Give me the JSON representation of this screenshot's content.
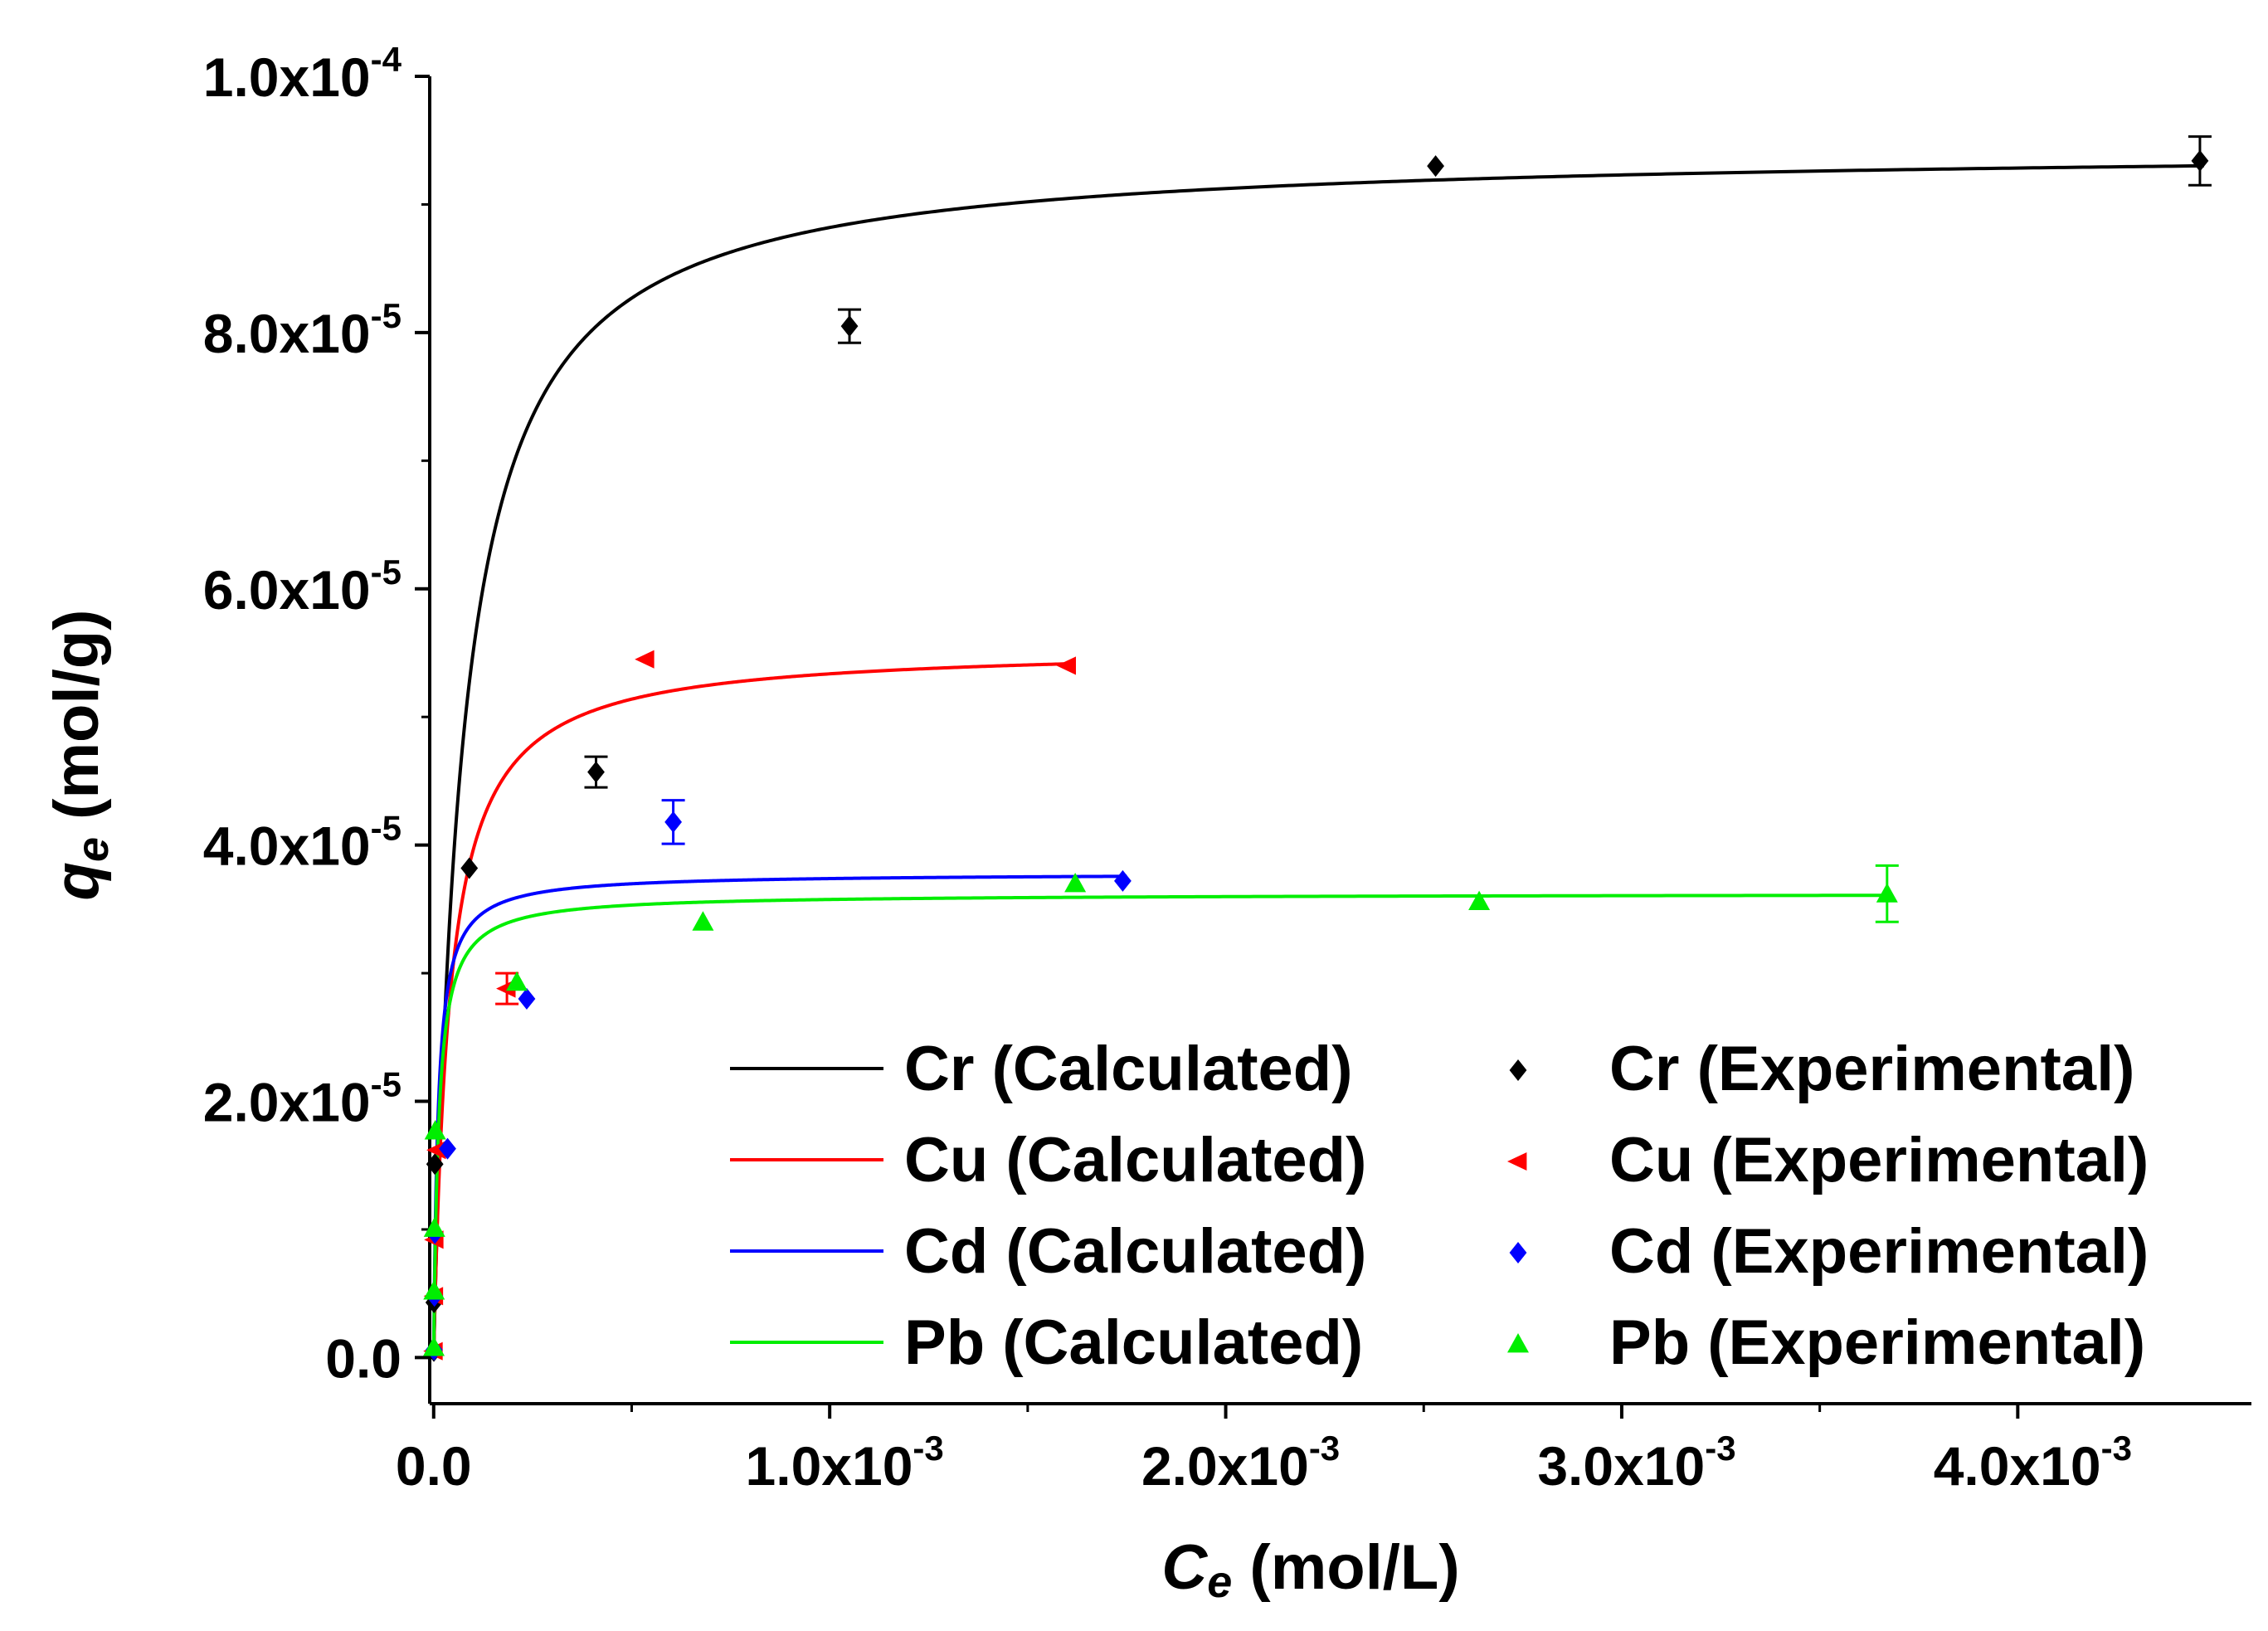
{
  "chart_data": {
    "type": "scatter",
    "x_axis": {
      "label_symbol": "C",
      "label_subscript": "e",
      "label_unit": " (mol/L)",
      "range": [
        -1e-05,
        0.00459
      ],
      "ticks": [
        {
          "value": 0,
          "mantissa": "0.0",
          "exponent": ""
        },
        {
          "value": 0.001,
          "mantissa": "1.0x10",
          "exponent": "-3"
        },
        {
          "value": 0.002,
          "mantissa": "2.0x10",
          "exponent": "-3"
        },
        {
          "value": 0.003,
          "mantissa": "3.0x10",
          "exponent": "-3"
        },
        {
          "value": 0.004,
          "mantissa": "4.0x10",
          "exponent": "-3"
        }
      ]
    },
    "y_axis": {
      "label_symbol": "q",
      "label_subscript": "e",
      "label_unit": " (mol/g)",
      "range": [
        -3.6e-06,
        0.0001
      ],
      "ticks": [
        {
          "value": 0,
          "mantissa": "0.0",
          "exponent": ""
        },
        {
          "value": 2e-05,
          "mantissa": "2.0x10",
          "exponent": "-5"
        },
        {
          "value": 4e-05,
          "mantissa": "4.0x10",
          "exponent": "-5"
        },
        {
          "value": 6e-05,
          "mantissa": "6.0x10",
          "exponent": "-5"
        },
        {
          "value": 8e-05,
          "mantissa": "8.0x10",
          "exponent": "-5"
        },
        {
          "value": 0.0001,
          "mantissa": "1.0x10",
          "exponent": "-4"
        }
      ]
    },
    "calculated_series": [
      {
        "name": "Cr (Calculated)",
        "color": "#000000",
        "qmax": 9.45e-05,
        "KL": 14000,
        "x_max": 0.00447
      },
      {
        "name": "Cu (Calculated)",
        "color": "#ff0000",
        "qmax": 5.55e-05,
        "KL": 25000,
        "x_max": 0.0016
      },
      {
        "name": "Cd (Calculated)",
        "color": "#0000ff",
        "qmax": 3.78e-05,
        "KL": 90000,
        "x_max": 0.00175
      },
      {
        "name": "Pb (Calculated)",
        "color": "#00ee00",
        "qmax": 3.62e-05,
        "KL": 80000,
        "x_max": 0.00368
      }
    ],
    "experimental_series": [
      {
        "name": "Cr (Experimental)",
        "color": "#000000",
        "marker": "diamond",
        "points": [
          {
            "x": 5e-07,
            "y": 5e-07,
            "err": 0
          },
          {
            "x": 1e-06,
            "y": 4.3e-06,
            "err": 0
          },
          {
            "x": 3e-06,
            "y": 1.51e-05,
            "err": 0
          },
          {
            "x": 9e-05,
            "y": 3.82e-05,
            "err": 0
          },
          {
            "x": 0.00041,
            "y": 4.57e-05,
            "err": 1.2e-06
          },
          {
            "x": 0.00105,
            "y": 8.05e-05,
            "err": 1.3e-06
          },
          {
            "x": 0.00253,
            "y": 9.3e-05,
            "err": 0
          },
          {
            "x": 0.00446,
            "y": 9.34e-05,
            "err": 1.9e-06
          }
        ]
      },
      {
        "name": "Cu (Experimental)",
        "color": "#ff0000",
        "marker": "triangle-left",
        "points": [
          {
            "x": 1e-06,
            "y": 5e-07,
            "err": 0
          },
          {
            "x": 2e-06,
            "y": 4.8e-06,
            "err": 0
          },
          {
            "x": 3e-06,
            "y": 9.2e-06,
            "err": 0
          },
          {
            "x": 9e-06,
            "y": 1.62e-05,
            "err": 0
          },
          {
            "x": 0.000185,
            "y": 2.88e-05,
            "err": 1.2e-06
          },
          {
            "x": 0.000535,
            "y": 5.45e-05,
            "err": 0
          },
          {
            "x": 0.0016,
            "y": 5.4e-05,
            "err": 0
          }
        ]
      },
      {
        "name": "Cd (Experimental)",
        "color": "#0000ff",
        "marker": "diamond",
        "points": [
          {
            "x": 1e-06,
            "y": 6e-07,
            "err": 0
          },
          {
            "x": 2e-06,
            "y": 4.8e-06,
            "err": 0
          },
          {
            "x": 3e-06,
            "y": 9.7e-06,
            "err": 0
          },
          {
            "x": 3.5e-05,
            "y": 1.63e-05,
            "err": 0
          },
          {
            "x": 0.000235,
            "y": 2.8e-05,
            "err": 0
          },
          {
            "x": 0.000605,
            "y": 4.18e-05,
            "err": 1.7e-06
          },
          {
            "x": 0.00174,
            "y": 3.72e-05,
            "err": 0
          }
        ]
      },
      {
        "name": "Pb (Experimental)",
        "color": "#00ee00",
        "marker": "triangle-up",
        "points": [
          {
            "x": 5e-07,
            "y": 8e-07,
            "err": 0
          },
          {
            "x": 1e-06,
            "y": 5.2e-06,
            "err": 0
          },
          {
            "x": 2e-06,
            "y": 1.01e-05,
            "err": 0
          },
          {
            "x": 4e-06,
            "y": 1.77e-05,
            "err": 0
          },
          {
            "x": 0.00021,
            "y": 2.93e-05,
            "err": 0
          },
          {
            "x": 0.00068,
            "y": 3.4e-05,
            "err": 0
          },
          {
            "x": 0.00162,
            "y": 3.7e-05,
            "err": 0
          },
          {
            "x": 0.00264,
            "y": 3.56e-05,
            "err": 0
          },
          {
            "x": 0.00367,
            "y": 3.62e-05,
            "err": 2.2e-06
          }
        ]
      }
    ],
    "legend": {
      "position": "bottom-right",
      "entries_left": [
        "Cr (Calculated)",
        "Cu (Calculated)",
        "Cd (Calculated)",
        "Pb (Calculated)"
      ],
      "entries_right": [
        "Cr (Experimental)",
        "Cu (Experimental)",
        "Cd (Experimental)",
        "Pb (Experimental)"
      ]
    },
    "grid": false
  }
}
